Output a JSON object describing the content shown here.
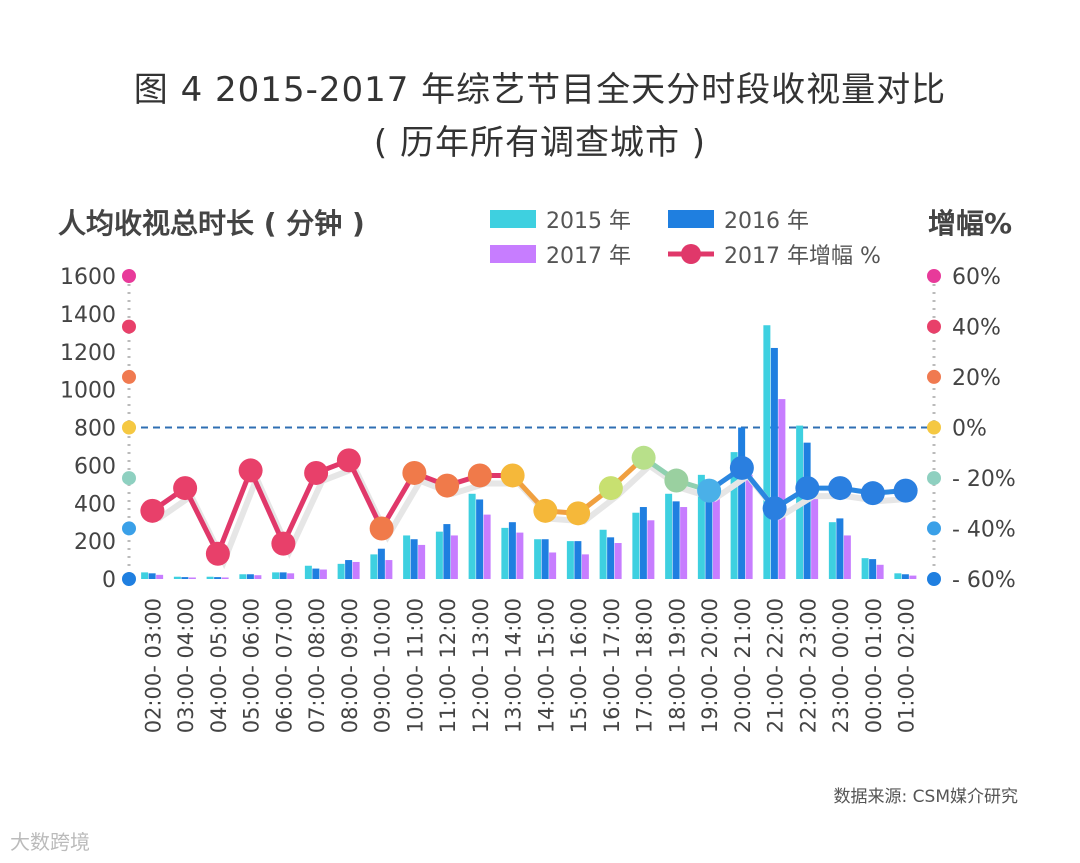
{
  "title_line1": "图 4   2015-2017 年综艺节目全天分时段收视量对比",
  "title_line2": "( 历年所有调查城市 )",
  "source": "数据来源: CSM媒介研究",
  "watermark": "大数跨境",
  "colors": {
    "y2015": "#3ed0e0",
    "y2016": "#1f7fe0",
    "y2017": "#c77dff",
    "growth_line": "#e0386a",
    "zero_line": "#2f6fb3"
  },
  "chart_data": {
    "type": "bar",
    "ylabel": "人均收视总时长 ( 分钟 )",
    "y2label": "增幅%",
    "ylim": [
      0,
      1600
    ],
    "y_ticks": [
      "0",
      "200",
      "400",
      "600",
      "800",
      "1000",
      "1200",
      "1400",
      "1600"
    ],
    "y2lim": [
      -60,
      60
    ],
    "y2_ticks": [
      "- 60%",
      "- 40%",
      "- 20%",
      "0%",
      "20%",
      "40%",
      "60%"
    ],
    "legend": [
      "2015 年",
      "2016 年",
      "2017 年",
      "2017 年增幅 %"
    ],
    "categories": [
      "02:00- 03:00",
      "03:00- 04:00",
      "04:00- 05:00",
      "05:00- 06:00",
      "06:00- 07:00",
      "07:00- 08:00",
      "08:00- 09:00",
      "09:00- 10:00",
      "10:00- 11:00",
      "11:00- 12:00",
      "12:00- 13:00",
      "13:00- 14:00",
      "14:00- 15:00",
      "15:00- 16:00",
      "16:00- 17:00",
      "17:00- 18:00",
      "18:00- 19:00",
      "19:00- 20:00",
      "20:00- 21:00",
      "21:00- 22:00",
      "22:00- 23:00",
      "23:00- 00:00",
      "00:00- 01:00",
      "01:00- 02:00"
    ],
    "series": [
      {
        "name": "2015 年",
        "values": [
          35,
          12,
          12,
          25,
          35,
          70,
          80,
          130,
          230,
          250,
          450,
          270,
          210,
          200,
          260,
          350,
          450,
          550,
          670,
          1340,
          810,
          300,
          110,
          30
        ]
      },
      {
        "name": "2016 年",
        "values": [
          30,
          10,
          10,
          25,
          35,
          55,
          100,
          160,
          210,
          290,
          420,
          300,
          210,
          200,
          220,
          380,
          410,
          510,
          800,
          1220,
          720,
          320,
          105,
          25
        ]
      },
      {
        "name": "2017 年",
        "values": [
          22,
          8,
          8,
          20,
          30,
          50,
          90,
          100,
          180,
          230,
          340,
          245,
          140,
          130,
          190,
          310,
          380,
          480,
          550,
          950,
          510,
          230,
          75,
          18
        ]
      },
      {
        "name": "2017 年增幅 %",
        "axis": "right",
        "type": "line",
        "values": [
          -33,
          -24,
          -50,
          -17,
          -46,
          -18,
          -13,
          -40,
          -18,
          -23,
          -19,
          -19,
          -33,
          -34,
          -24,
          -12,
          -21,
          -25,
          -16,
          -32,
          -24,
          -24,
          -26,
          -25
        ]
      }
    ]
  }
}
